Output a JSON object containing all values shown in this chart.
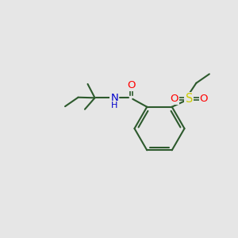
{
  "bg_color": "#e6e6e6",
  "bond_color": "#2d5a2d",
  "atom_colors": {
    "O": "#ff0000",
    "N": "#0000cc",
    "S": "#cccc00"
  },
  "bond_width": 1.5,
  "font_size": 9.5
}
